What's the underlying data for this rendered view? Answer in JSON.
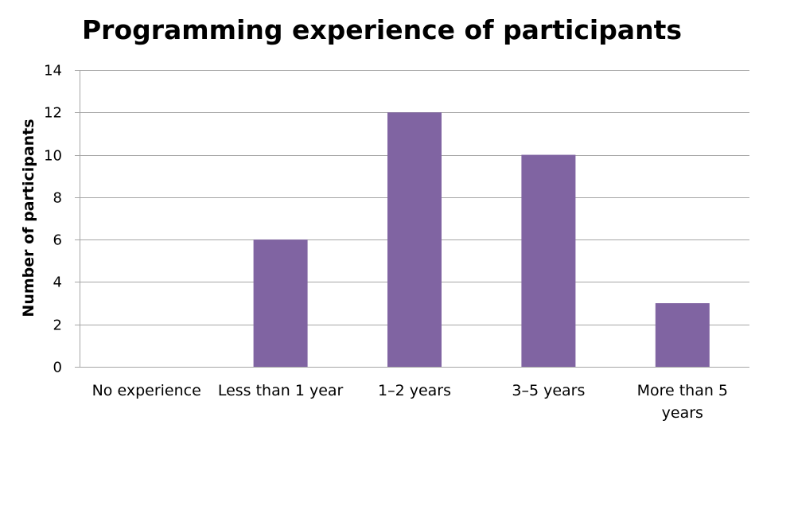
{
  "chart_data": {
    "type": "bar",
    "title": "Programming experience of participants",
    "xlabel": "",
    "ylabel": "Number of participants",
    "categories": [
      "No experience",
      "Less than 1 year",
      "1–2 years",
      "3–5 years",
      "More than 5 years"
    ],
    "category_lines": [
      [
        "No experience"
      ],
      [
        "Less than 1 year"
      ],
      [
        "1–2 years"
      ],
      [
        "3–5 years"
      ],
      [
        "More than 5",
        "years"
      ]
    ],
    "values": [
      0,
      6,
      12,
      10,
      3
    ],
    "ylim": [
      0,
      14
    ],
    "yticks": [
      0,
      2,
      4,
      6,
      8,
      10,
      12,
      14
    ],
    "grid": true,
    "legend": "none",
    "bar_color": "#8064A2",
    "grid_color": "#A6A6A6"
  }
}
